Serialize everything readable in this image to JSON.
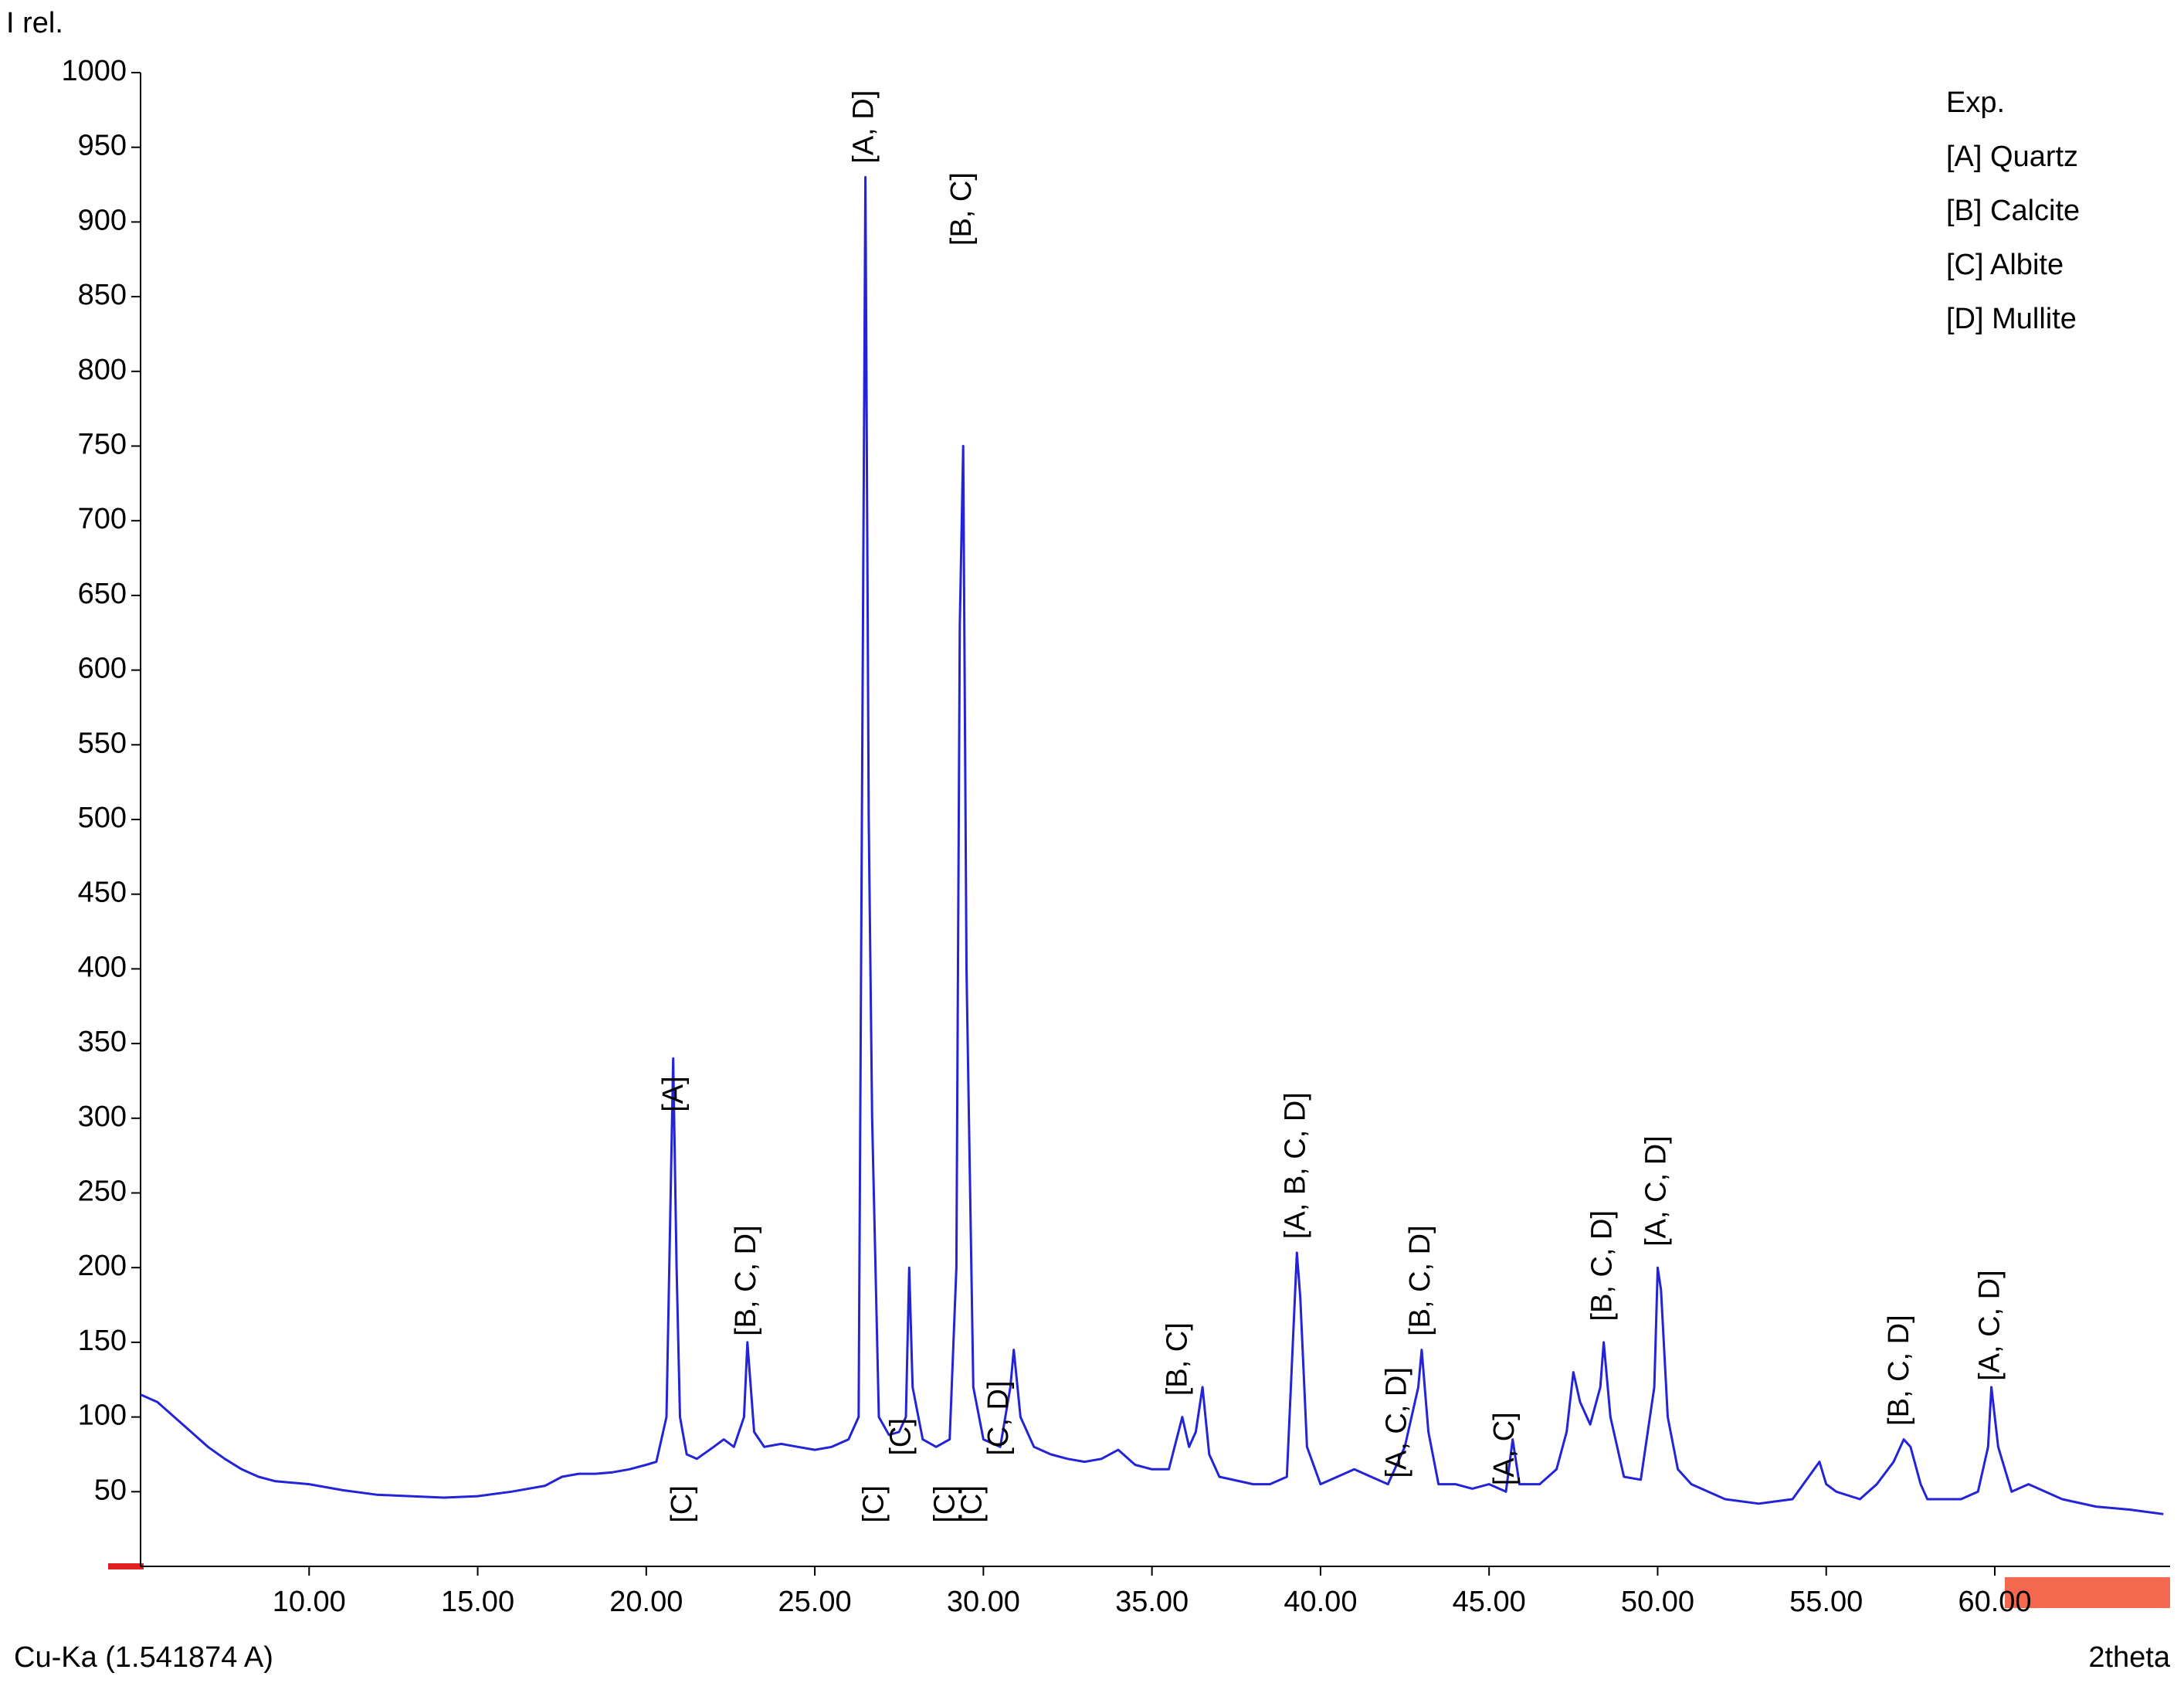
{
  "chart_data": {
    "type": "line",
    "y_axis_label": "I rel.",
    "x_axis_label": "2theta",
    "radiation_label": "Cu-Ka (1.541874 A)",
    "xlim": [
      5,
      65.2
    ],
    "ylim": [
      0,
      1000
    ],
    "xticks": [
      {
        "value": 10,
        "label": "10.00"
      },
      {
        "value": 15,
        "label": "15.00"
      },
      {
        "value": 20,
        "label": "20.00"
      },
      {
        "value": 25,
        "label": "25.00"
      },
      {
        "value": 30,
        "label": "30.00"
      },
      {
        "value": 35,
        "label": "35.00"
      },
      {
        "value": 40,
        "label": "40.00"
      },
      {
        "value": 45,
        "label": "45.00"
      },
      {
        "value": 50,
        "label": "50.00"
      },
      {
        "value": 55,
        "label": "55.00"
      },
      {
        "value": 60,
        "label": "60.00"
      }
    ],
    "yticks": [
      50,
      100,
      150,
      200,
      250,
      300,
      350,
      400,
      450,
      500,
      550,
      600,
      650,
      700,
      750,
      800,
      850,
      900,
      950,
      1000
    ],
    "grid": false,
    "legend_position": "upper right",
    "x": [
      5,
      5.5,
      6,
      6.5,
      7,
      7.5,
      8,
      8.5,
      9,
      10,
      11,
      12,
      13,
      14,
      15,
      16,
      17,
      17.5,
      18,
      18.5,
      19,
      19.5,
      20,
      20.3,
      20.6,
      20.8,
      20.9,
      21.0,
      21.2,
      21.5,
      22,
      22.3,
      22.6,
      22.9,
      23.0,
      23.2,
      23.5,
      24,
      24.5,
      25,
      25.5,
      26,
      26.3,
      26.5,
      26.6,
      26.7,
      26.9,
      27.2,
      27.5,
      27.7,
      27.8,
      27.9,
      28.2,
      28.6,
      29.0,
      29.2,
      29.3,
      29.4,
      29.5,
      29.7,
      30,
      30.5,
      30.8,
      30.9,
      31.1,
      31.5,
      32,
      32.5,
      33,
      33.5,
      34,
      34.5,
      35,
      35.5,
      35.9,
      36.1,
      36.3,
      36.5,
      36.7,
      37,
      38,
      38.5,
      39,
      39.3,
      39.4,
      39.6,
      40,
      40.5,
      41,
      41.5,
      42,
      42.3,
      42.5,
      42.9,
      43.0,
      43.2,
      43.5,
      44,
      44.5,
      45,
      45.5,
      45.7,
      45.9,
      46.5,
      47,
      47.3,
      47.5,
      47.7,
      48,
      48.3,
      48.4,
      48.6,
      49,
      49.5,
      49.9,
      50.0,
      50.1,
      50.3,
      50.6,
      51,
      52,
      53,
      54,
      54.8,
      55,
      55.3,
      56,
      56.5,
      57,
      57.3,
      57.5,
      57.8,
      58,
      59,
      59.5,
      59.8,
      59.9,
      60.1,
      60.5,
      61,
      62,
      63,
      64,
      65
    ],
    "series": [
      {
        "name": "Exp.",
        "color": "#2323d8",
        "values": [
          115,
          110,
          100,
          90,
          80,
          72,
          65,
          60,
          57,
          55,
          51,
          48,
          47,
          46,
          47,
          50,
          54,
          60,
          62,
          62,
          63,
          65,
          68,
          70,
          100,
          340,
          200,
          100,
          75,
          72,
          80,
          85,
          80,
          100,
          150,
          90,
          80,
          82,
          80,
          78,
          80,
          85,
          100,
          930,
          500,
          300,
          100,
          88,
          90,
          100,
          200,
          120,
          85,
          80,
          85,
          200,
          630,
          750,
          400,
          120,
          85,
          80,
          120,
          145,
          100,
          80,
          75,
          72,
          70,
          72,
          78,
          68,
          65,
          65,
          100,
          80,
          90,
          120,
          75,
          60,
          55,
          55,
          60,
          210,
          180,
          80,
          55,
          60,
          65,
          60,
          55,
          70,
          80,
          120,
          145,
          90,
          55,
          55,
          52,
          55,
          50,
          85,
          55,
          55,
          65,
          90,
          130,
          110,
          95,
          120,
          150,
          100,
          60,
          58,
          120,
          200,
          185,
          100,
          65,
          55,
          45,
          42,
          45,
          70,
          55,
          50,
          45,
          55,
          70,
          85,
          80,
          55,
          45,
          45,
          50,
          80,
          120,
          80,
          50,
          55,
          45,
          40,
          38,
          35
        ]
      }
    ],
    "phases": [
      {
        "name": "[A] Quartz",
        "color": "#e02020"
      },
      {
        "name": "[B] Calcite",
        "color": "#33cc99"
      },
      {
        "name": "[C] Albite",
        "color": "#33aaee"
      },
      {
        "name": "[D] Mullite",
        "color": "#ff8833"
      }
    ],
    "annotation_color": "#3a3acf",
    "annotations": [
      {
        "label": "[A]",
        "x": 20.85,
        "y": 300
      },
      {
        "label": "[B, C, D]",
        "x": 23.0,
        "y": 150
      },
      {
        "label": "[A, D]",
        "x": 26.5,
        "y": 935
      },
      {
        "label": "[B, C]",
        "x": 29.4,
        "y": 880
      },
      {
        "label": "[C]",
        "x": 27.6,
        "y": 70
      },
      {
        "label": "[C, D]",
        "x": 30.5,
        "y": 70
      },
      {
        "label": "[B, C]",
        "x": 35.8,
        "y": 110
      },
      {
        "label": "[A, B, C, D]",
        "x": 39.3,
        "y": 215
      },
      {
        "label": "[A, C, D]",
        "x": 42.3,
        "y": 55
      },
      {
        "label": "[B, C, D]",
        "x": 43.0,
        "y": 150
      },
      {
        "label": "[A, C]",
        "x": 45.5,
        "y": 50
      },
      {
        "label": "[B, C, D]",
        "x": 48.4,
        "y": 160
      },
      {
        "label": "[A, C, D]",
        "x": 50.0,
        "y": 210
      },
      {
        "label": "[B, C, D]",
        "x": 57.2,
        "y": 90
      },
      {
        "label": "[A, C, D]",
        "x": 59.9,
        "y": 120
      },
      {
        "label": "[C]",
        "x": 21.1,
        "y": 25
      },
      {
        "label": "[C]",
        "x": 26.8,
        "y": 25
      },
      {
        "label": "[C]",
        "x": 28.9,
        "y": 25
      },
      {
        "label": "[C]",
        "x": 29.7,
        "y": 25
      }
    ]
  }
}
